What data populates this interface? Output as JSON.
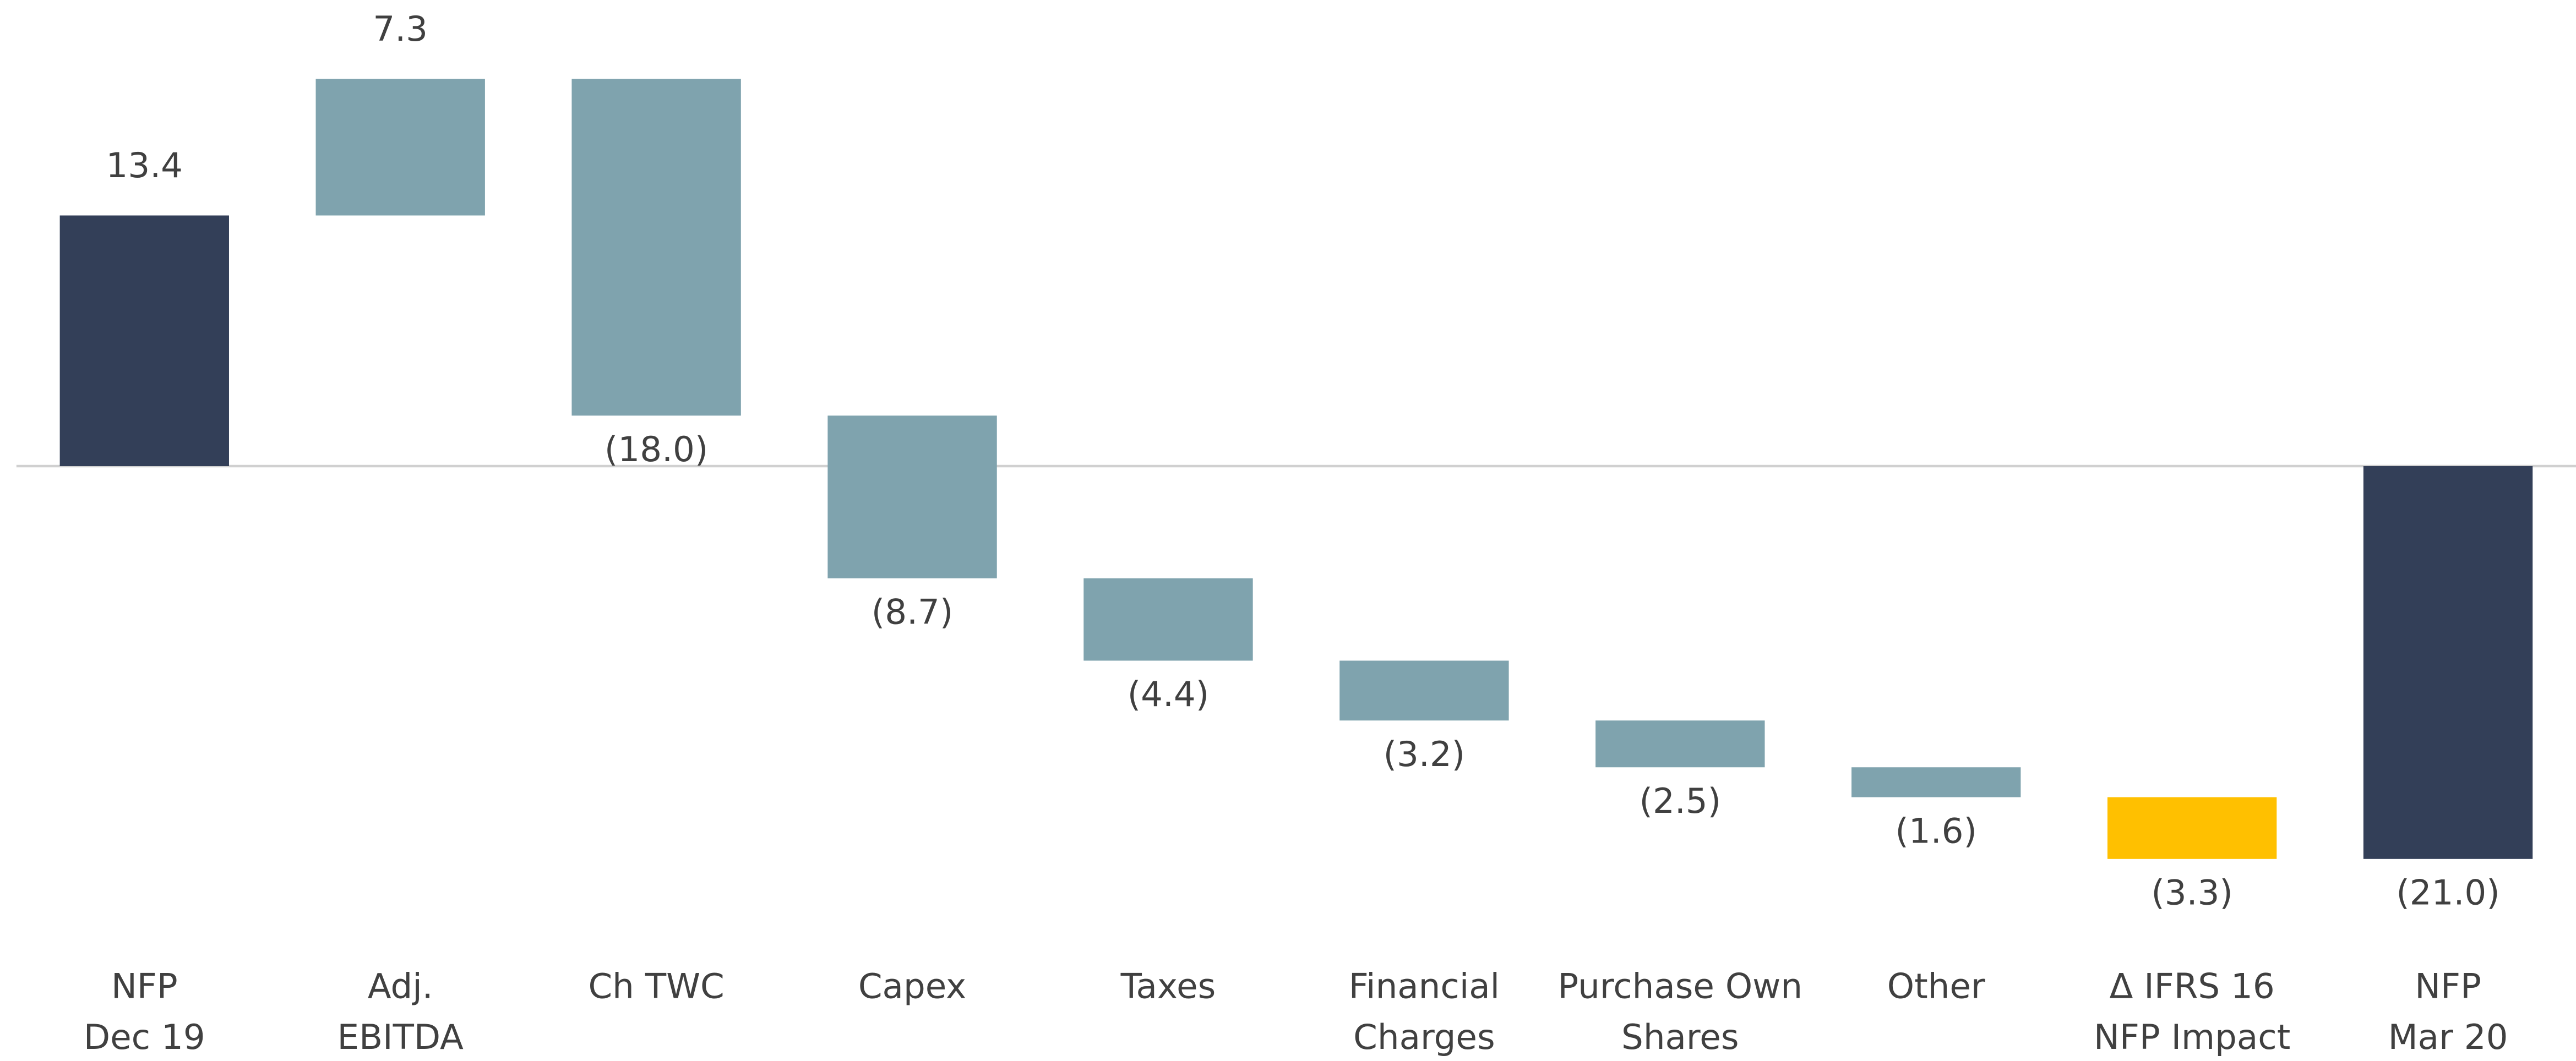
{
  "chart_data": {
    "type": "waterfall",
    "categories": [
      [
        "NFP",
        "Dec 19"
      ],
      [
        "Adj.",
        "EBITDA"
      ],
      [
        "Ch TWC"
      ],
      [
        "Capex"
      ],
      [
        "Taxes"
      ],
      [
        "Financial",
        "Charges"
      ],
      [
        "Purchase Own",
        "Shares"
      ],
      [
        "Other"
      ],
      [
        "Δ IFRS 16",
        "NFP Impact"
      ],
      [
        "NFP",
        "Mar 20"
      ]
    ],
    "values": [
      13.4,
      7.3,
      -18.0,
      -8.7,
      -4.4,
      -3.2,
      -2.5,
      -1.6,
      -3.3,
      -21.0
    ],
    "value_labels": [
      "13.4",
      "7.3",
      "(18.0)",
      "(8.7)",
      "(4.4)",
      "(3.2)",
      "(2.5)",
      "(1.6)",
      "(3.3)",
      "(21.0)"
    ],
    "is_total": [
      true,
      false,
      false,
      false,
      false,
      false,
      false,
      false,
      false,
      true
    ],
    "colors": [
      "#333f58",
      "#7fa3ae",
      "#7fa3ae",
      "#7fa3ae",
      "#7fa3ae",
      "#7fa3ae",
      "#7fa3ae",
      "#7fa3ae",
      "#ffc000",
      "#333f58"
    ]
  }
}
